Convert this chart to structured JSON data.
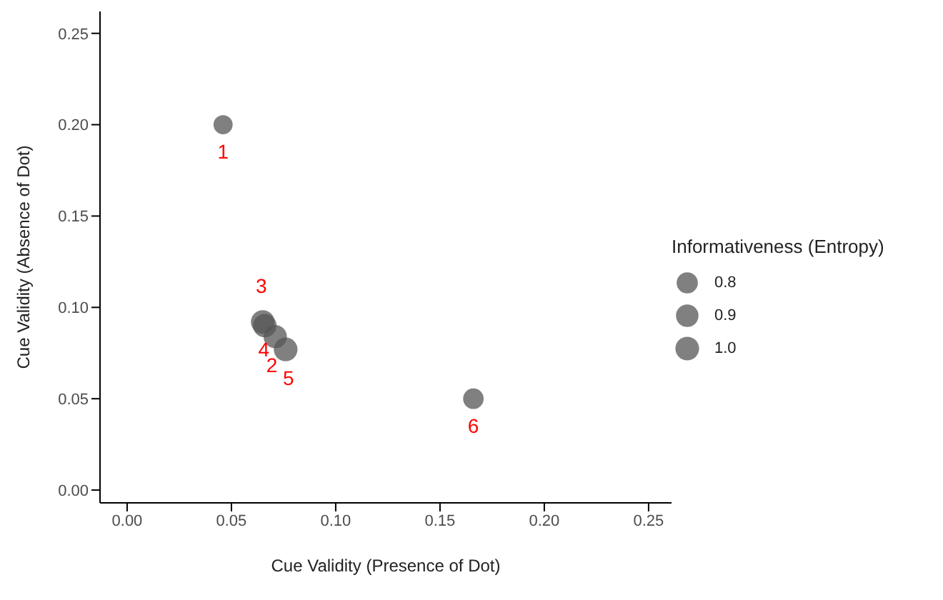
{
  "chart_data": {
    "type": "bubble",
    "xlabel": "Cue Validity (Presence of Dot)",
    "ylabel": "Cue Validity (Absence of Dot)",
    "legend_title": "Informativeness (Entropy)",
    "x": [
      0.046,
      0.066,
      0.065,
      0.071,
      0.076,
      0.166
    ],
    "series": [
      {
        "color": "#555555",
        "values": [
          0.2,
          0.09,
          0.092,
          0.084,
          0.077,
          0.05
        ],
        "sizes": [
          0.65,
          0.98,
          0.99,
          0.97,
          1.0,
          0.75
        ]
      }
    ],
    "size_legend": [
      {
        "value": 0.8,
        "label": "0.8"
      },
      {
        "value": 0.9,
        "label": "0.9"
      },
      {
        "value": 1,
        "label": "1.0"
      }
    ],
    "xlim": [
      -0.013,
      0.261
    ],
    "ylim": [
      -0.007,
      0.262
    ],
    "xticks": [
      {
        "value": 0,
        "label": "0.00"
      },
      {
        "value": 0.05,
        "label": "0.05"
      },
      {
        "value": 0.1,
        "label": "0.10"
      },
      {
        "value": 0.15,
        "label": "0.15"
      },
      {
        "value": 0.2,
        "label": "0.20"
      },
      {
        "value": 0.25,
        "label": "0.25"
      }
    ],
    "yticks": [
      {
        "value": 0,
        "label": "0.00"
      },
      {
        "value": 0.05,
        "label": "0.05"
      },
      {
        "value": 0.1,
        "label": "0.10"
      },
      {
        "value": 0.15,
        "label": "0.15"
      },
      {
        "value": 0.2,
        "label": "0.20"
      },
      {
        "value": 0.25,
        "label": "0.25"
      }
    ],
    "annotations": [
      {
        "text": "1",
        "x": 0.046,
        "y": 0.2
      },
      {
        "text": "2",
        "x": 0.066,
        "y": 0.09
      },
      {
        "text": "3",
        "x": 0.065,
        "y": 0.092
      },
      {
        "text": "4",
        "x": 0.071,
        "y": 0.084
      },
      {
        "text": "5",
        "x": 0.076,
        "y": 0.077
      },
      {
        "text": "6",
        "x": 0.166,
        "y": 0.05
      }
    ],
    "grid": false,
    "marker": "circle"
  }
}
